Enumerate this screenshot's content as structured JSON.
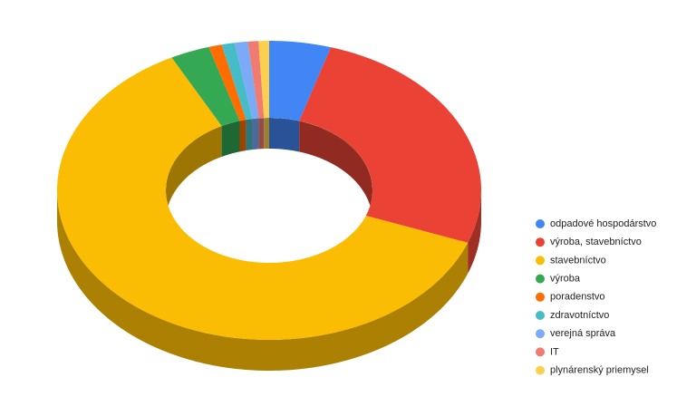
{
  "chart_data": {
    "type": "pie",
    "categories": [
      "odpadové hospodárstvo",
      "výroba, stavebníctvo",
      "stavebníctvo",
      "výroba",
      "poradenstvo",
      "zdravotníctvo",
      "verejná správa",
      "IT",
      "plynárenský priemysel"
    ],
    "values": [
      4.7,
      26,
      61.7,
      3,
      1,
      1,
      1,
      0.8,
      0.8
    ],
    "colors": [
      "#4285f4",
      "#ea4335",
      "#fbbc04",
      "#34a853",
      "#ff6d01",
      "#46bdc6",
      "#7baaf7",
      "#f07b72",
      "#fcd04f"
    ]
  }
}
